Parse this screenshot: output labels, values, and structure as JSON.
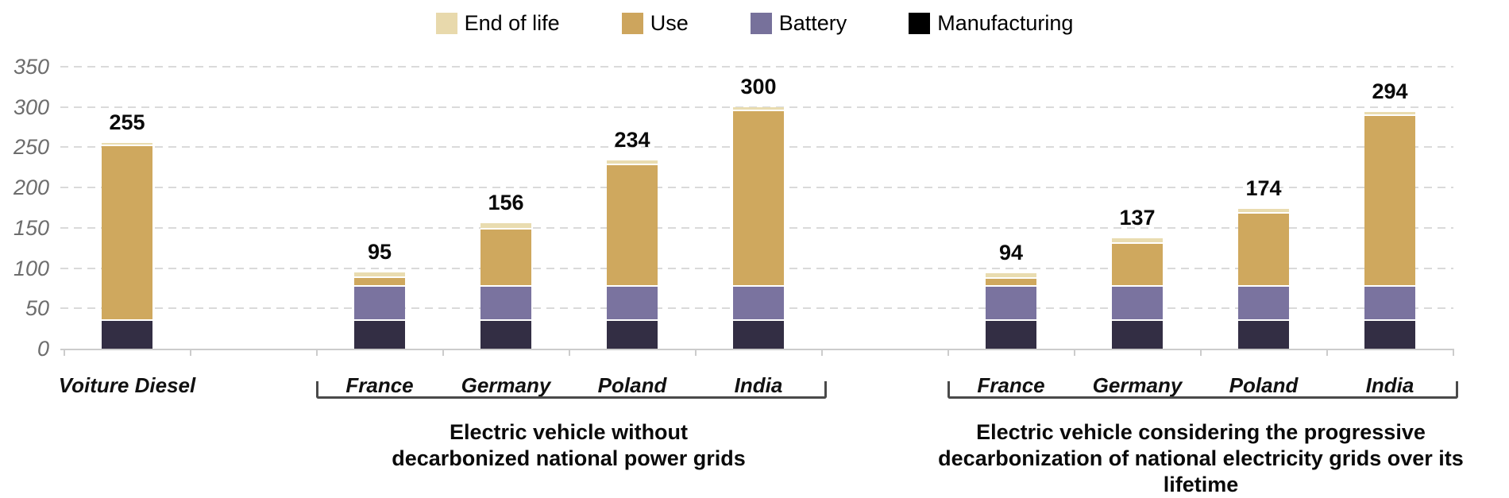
{
  "legend": {
    "items": [
      {
        "label": "End of life",
        "color": "#e8d9ac"
      },
      {
        "label": "Use",
        "color": "#cda55d"
      },
      {
        "label": "Battery",
        "color": "#77719b"
      },
      {
        "label": "Manufacturing",
        "color": "#000000"
      }
    ]
  },
  "chart_data": {
    "type": "bar",
    "stacked": true,
    "title": "",
    "xlabel": "",
    "ylabel": "",
    "ylim": [
      0,
      350
    ],
    "yticks": [
      0,
      50,
      100,
      150,
      200,
      250,
      300,
      350
    ],
    "grid": "horizontal dashed",
    "legend_position": "top center",
    "series_order_bottom_to_top": [
      "Manufacturing",
      "Battery",
      "Use",
      "End of life"
    ],
    "colors": {
      "End of life": "#e9dcb0",
      "Use": "#cfa85e",
      "Battery": "#7a739f",
      "Manufacturing": "#332e44",
      "gridline": "#dadada",
      "axis": "#cccccc",
      "ylabels": "#6d6d6d",
      "bracket": "#4a4a4a"
    },
    "bars": [
      {
        "label": "Voiture Diesel",
        "group": "diesel",
        "total": 255,
        "segments": {
          "Manufacturing": 35,
          "Battery": 0,
          "Use": 216,
          "End of life": 4
        }
      },
      {
        "label": "France",
        "group": "ev_no_decarb",
        "total": 95,
        "segments": {
          "Manufacturing": 35,
          "Battery": 42,
          "Use": 11,
          "End of life": 7
        }
      },
      {
        "label": "Germany",
        "group": "ev_no_decarb",
        "total": 156,
        "segments": {
          "Manufacturing": 35,
          "Battery": 42,
          "Use": 71,
          "End of life": 8
        }
      },
      {
        "label": "Poland",
        "group": "ev_no_decarb",
        "total": 234,
        "segments": {
          "Manufacturing": 35,
          "Battery": 42,
          "Use": 151,
          "End of life": 6
        }
      },
      {
        "label": "India",
        "group": "ev_no_decarb",
        "total": 300,
        "segments": {
          "Manufacturing": 35,
          "Battery": 42,
          "Use": 218,
          "End of life": 5
        }
      },
      {
        "label": "France",
        "group": "ev_decarb",
        "total": 94,
        "segments": {
          "Manufacturing": 35,
          "Battery": 42,
          "Use": 10,
          "End of life": 7
        }
      },
      {
        "label": "Germany",
        "group": "ev_decarb",
        "total": 137,
        "segments": {
          "Manufacturing": 35,
          "Battery": 42,
          "Use": 53,
          "End of life": 7
        }
      },
      {
        "label": "Poland",
        "group": "ev_decarb",
        "total": 174,
        "segments": {
          "Manufacturing": 35,
          "Battery": 42,
          "Use": 91,
          "End of life": 6
        }
      },
      {
        "label": "India",
        "group": "ev_decarb",
        "total": 294,
        "segments": {
          "Manufacturing": 35,
          "Battery": 42,
          "Use": 212,
          "End of life": 5
        }
      }
    ],
    "groups": [
      {
        "id": "ev_no_decarb",
        "caption_line1": "Electric vehicle without",
        "caption_line2": "decarbonized national power grids"
      },
      {
        "id": "ev_decarb",
        "caption_line1": "Electric vehicle considering the progressive",
        "caption_line2": "decarbonization of national electricity grids over its lifetime"
      }
    ]
  }
}
